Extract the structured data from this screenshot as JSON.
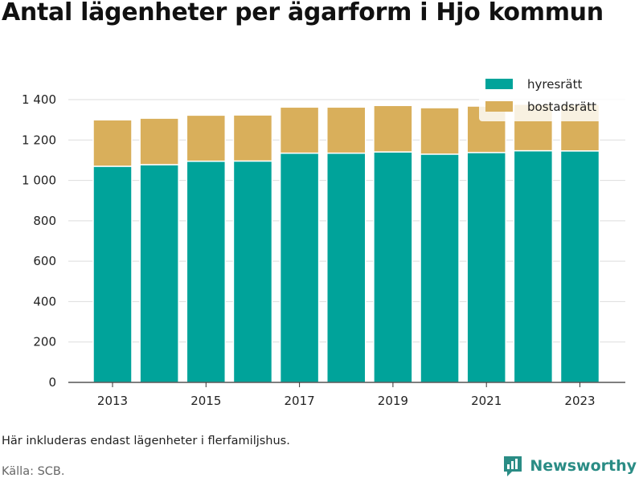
{
  "title": "Antal lägenheter per ägarform i Hjo kommun",
  "note": "Här inkluderas endast lägenheter i flerfamiljshus.",
  "source": "Källa: SCB.",
  "brand": {
    "name": "Newsworthy",
    "icon": "newsworthy-bar-chart-icon"
  },
  "colors": {
    "hyresratt": "#00a39a",
    "bostadsratt": "#d9af5b",
    "grid": "#dddddd",
    "brand": "#2a8c85"
  },
  "chart_data": {
    "type": "bar",
    "stacked": true,
    "title": "Antal lägenheter per ägarform i Hjo kommun",
    "categories": [
      2013,
      2014,
      2015,
      2016,
      2017,
      2018,
      2019,
      2020,
      2021,
      2022,
      2023
    ],
    "x_tick_labels": [
      "2013",
      "2015",
      "2017",
      "2019",
      "2021",
      "2023"
    ],
    "series": [
      {
        "name": "hyresrätt",
        "color": "#00a39a",
        "values": [
          1070,
          1078,
          1095,
          1096,
          1135,
          1135,
          1141,
          1130,
          1138,
          1147,
          1146
        ]
      },
      {
        "name": "bostadsrätt",
        "color": "#d9af5b",
        "values": [
          230,
          230,
          228,
          228,
          228,
          228,
          230,
          230,
          230,
          230,
          230
        ]
      }
    ],
    "ylim": [
      0,
      1400
    ],
    "y_ticks": [
      0,
      200,
      400,
      600,
      800,
      1000,
      1200,
      1400
    ],
    "y_tick_labels": [
      "0",
      "200",
      "400",
      "600",
      "800",
      "1 000",
      "1 200",
      "1 400"
    ],
    "xlabel": "",
    "ylabel": "",
    "grid": true,
    "legend_position": "top-right"
  }
}
